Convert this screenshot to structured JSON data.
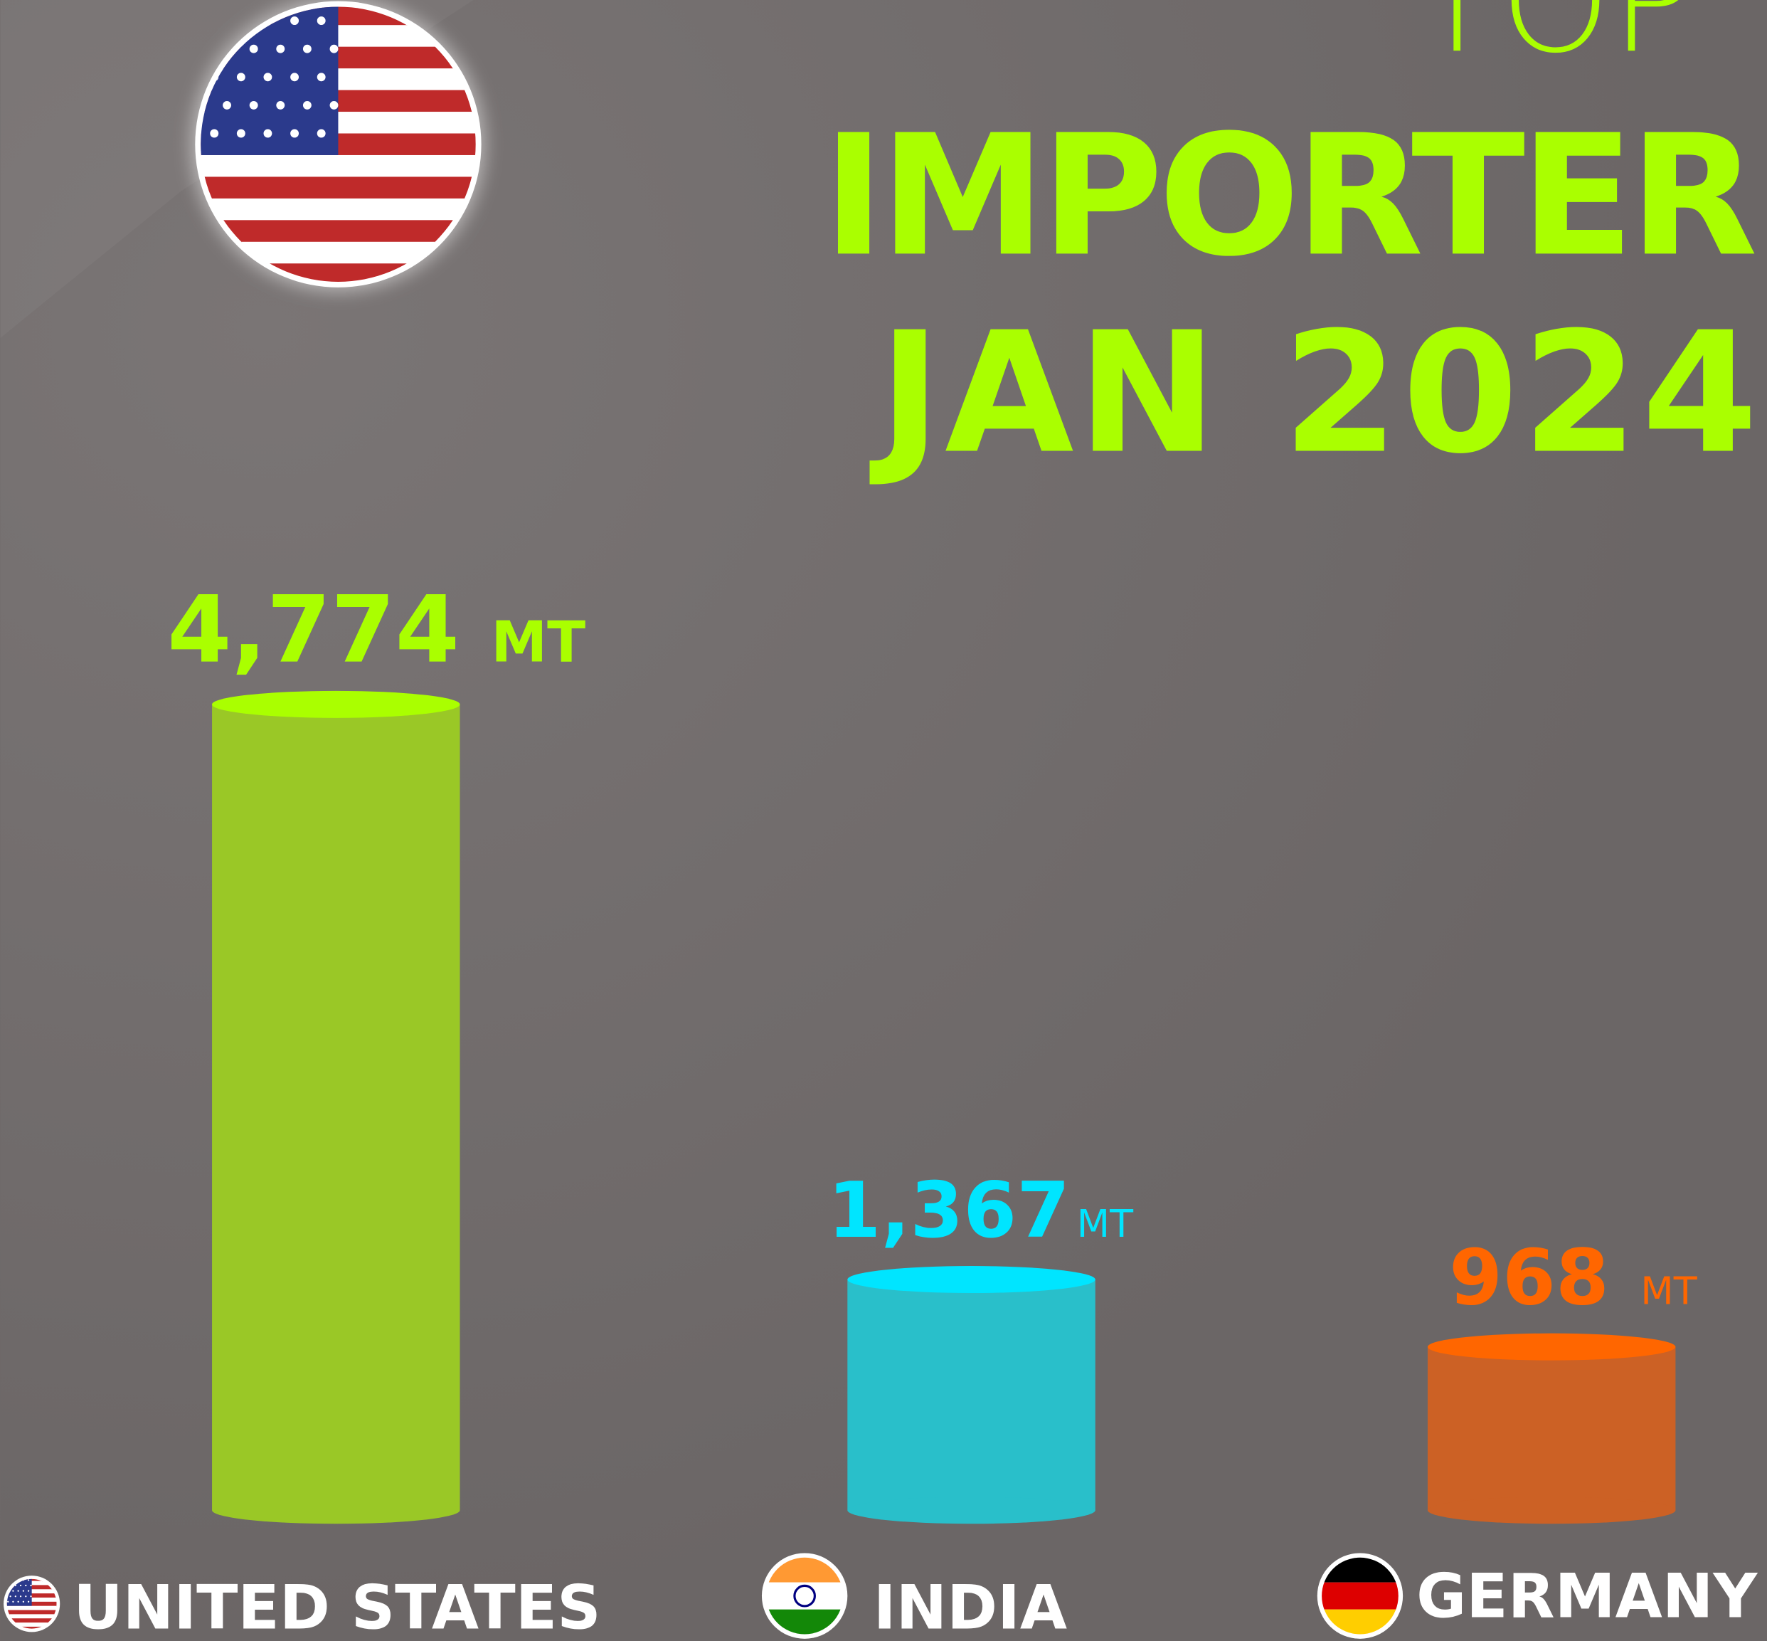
{
  "chart_data": {
    "type": "bar",
    "title": [
      "TOP",
      "IMPORTER",
      "JAN 2024"
    ],
    "categories": [
      "UNITED STATES",
      "INDIA",
      "GERMANY"
    ],
    "values": [
      4774,
      1367,
      968
    ],
    "value_labels": [
      "4,774",
      "1,367",
      "968"
    ],
    "unit": "MT",
    "colors": [
      "#9ac826",
      "#29bfca",
      "#cc6125"
    ],
    "top_colors": [
      "#aaff00",
      "#00e5ff",
      "#ff6600"
    ]
  }
}
